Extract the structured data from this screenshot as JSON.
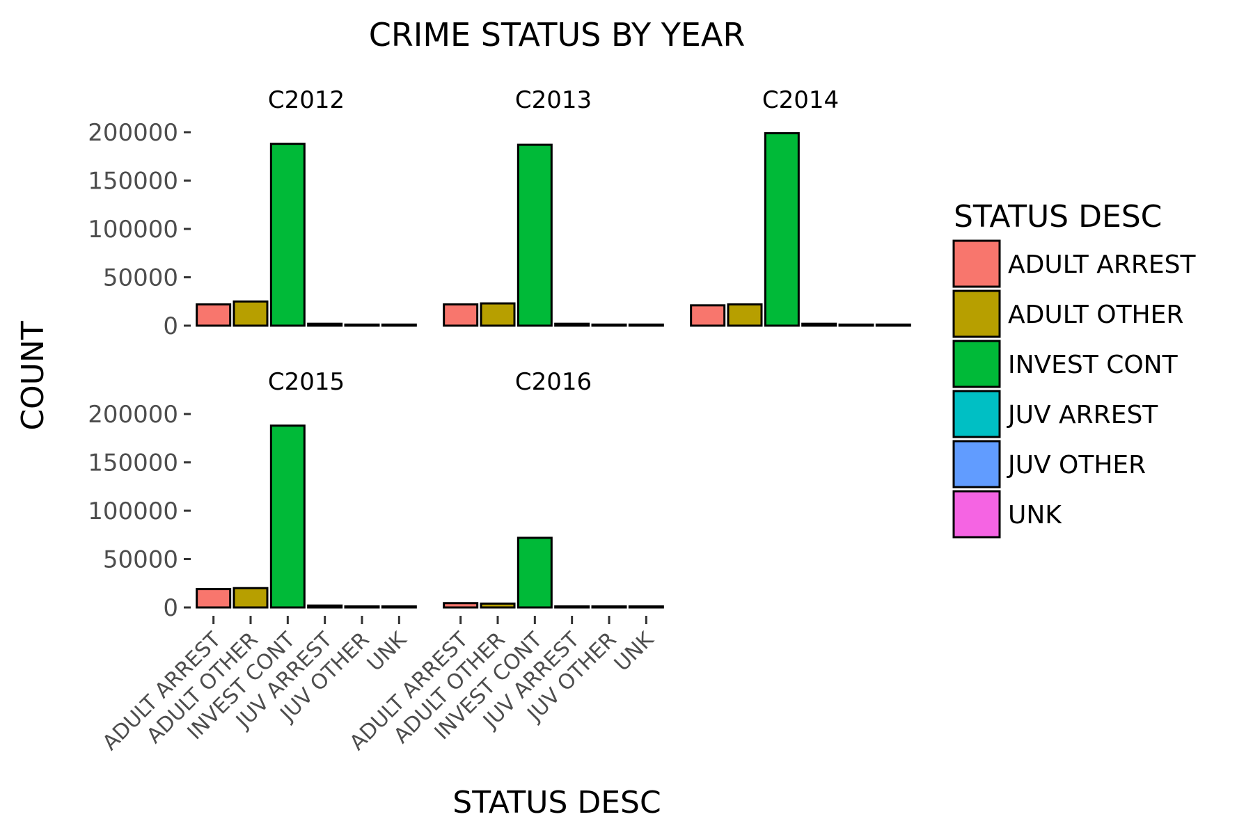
{
  "chart_data": {
    "type": "bar",
    "title": "CRIME STATUS BY YEAR",
    "xlabel": "STATUS DESC",
    "ylabel": "COUNT",
    "ylim": [
      0,
      200000
    ],
    "yticks": [
      "200000",
      "150000",
      "100000",
      "50000",
      "0"
    ],
    "categories": [
      "ADULT ARREST",
      "ADULT OTHER",
      "INVEST CONT",
      "JUV ARREST",
      "JUV OTHER",
      "UNK"
    ],
    "legend": {
      "title": "STATUS DESC",
      "position": "right",
      "entries": [
        {
          "label": "ADULT ARREST",
          "color": "#F8766D"
        },
        {
          "label": "ADULT OTHER",
          "color": "#B79F00"
        },
        {
          "label": "INVEST CONT",
          "color": "#00BA38"
        },
        {
          "label": "JUV ARREST",
          "color": "#00BFC4"
        },
        {
          "label": "JUV OTHER",
          "color": "#619CFF"
        },
        {
          "label": "UNK",
          "color": "#F564E3"
        }
      ]
    },
    "facets": [
      {
        "name": "C2012",
        "values": [
          22000,
          25000,
          188000,
          2000,
          600,
          200
        ]
      },
      {
        "name": "C2013",
        "values": [
          22000,
          23000,
          187000,
          2000,
          600,
          200
        ]
      },
      {
        "name": "C2014",
        "values": [
          21000,
          22000,
          199000,
          2000,
          600,
          200
        ]
      },
      {
        "name": "C2015",
        "values": [
          19000,
          20000,
          188000,
          2000,
          600,
          200
        ]
      },
      {
        "name": "C2016",
        "values": [
          4500,
          4000,
          72000,
          500,
          200,
          100
        ]
      }
    ],
    "grid": false
  }
}
